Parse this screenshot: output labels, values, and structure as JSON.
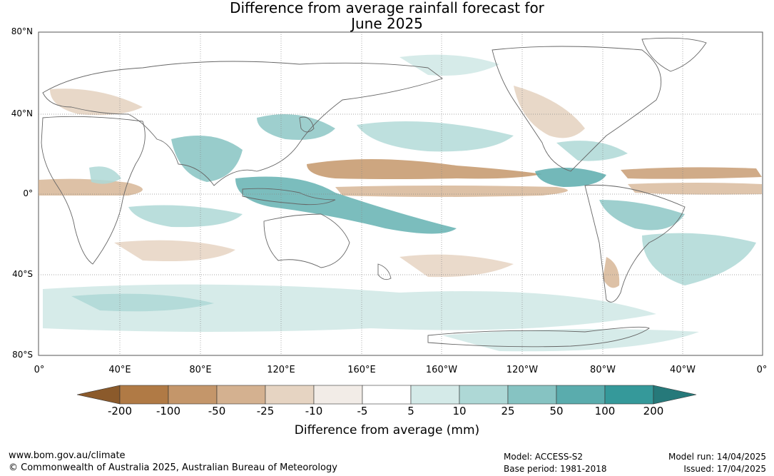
{
  "title_line1": "Difference from average rainfall forecast for",
  "title_line2": "June 2025",
  "lat_labels": [
    "80°N",
    "40°N",
    "0°",
    "40°S",
    "80°S"
  ],
  "lon_labels": [
    "0°",
    "40°E",
    "80°E",
    "120°E",
    "160°E",
    "160°W",
    "120°W",
    "80°W",
    "40°W",
    "0°"
  ],
  "legend": {
    "title": "Difference from average (mm)",
    "ticks": [
      "-200",
      "-100",
      "-50",
      "-25",
      "-10",
      "-5",
      "5",
      "10",
      "25",
      "50",
      "100",
      "200"
    ],
    "colors": [
      "#8b5a2b",
      "#b07a45",
      "#c4966a",
      "#d4b190",
      "#e6d4c2",
      "#f2ece7",
      "#ffffff",
      "#d4eae8",
      "#aed8d6",
      "#86c3c2",
      "#5aacad",
      "#35999a",
      "#26797a"
    ]
  },
  "footer": {
    "website": "www.bom.gov.au/climate",
    "copyright": "© Commonwealth of Australia 2025, Australian Bureau of Meteorology",
    "model": "Model: ACCESS-S2",
    "base_period": "Base period: 1981-2018",
    "model_run": "Model run: 14/04/2025",
    "issued": "Issued: 17/04/2025"
  }
}
